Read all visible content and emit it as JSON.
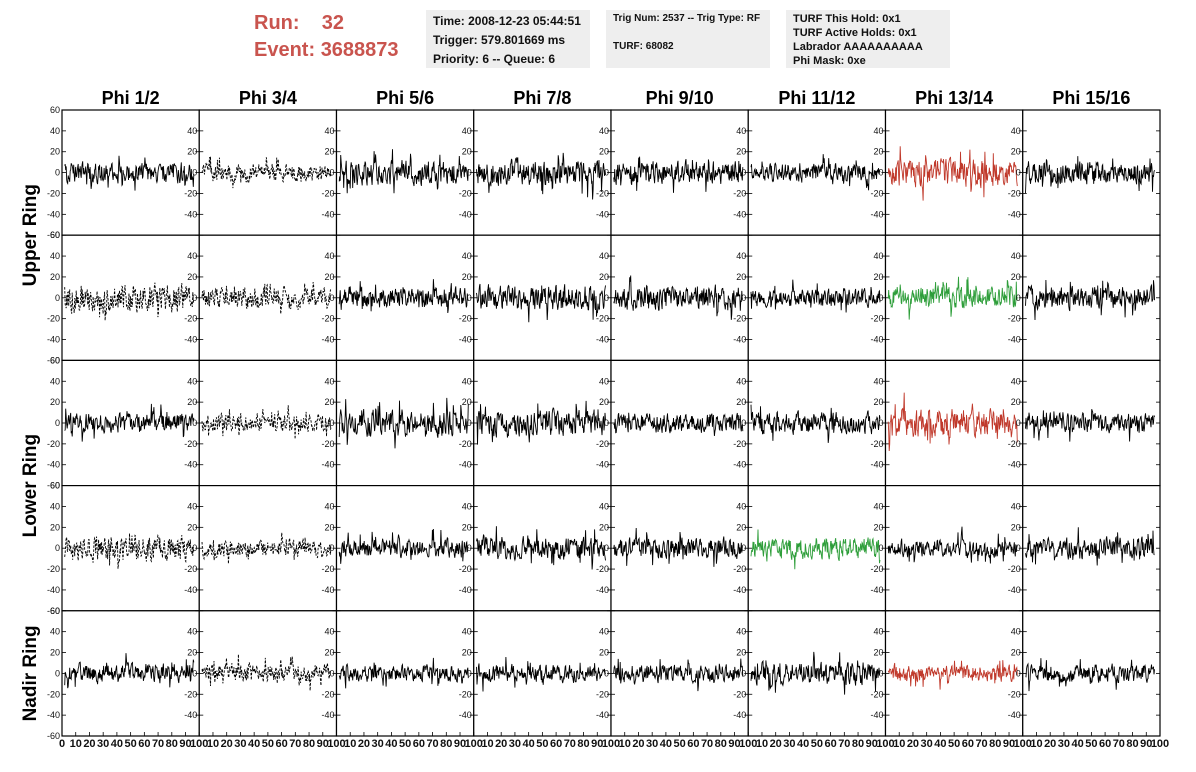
{
  "header": {
    "run_label": "Run:",
    "run_value": "32",
    "event_label": "Event:",
    "event_value": "3688873"
  },
  "info_time": {
    "time": "Time: 2008-12-23 05:44:51",
    "trigger": "Trigger: 579.801669 ms",
    "priority": "Priority: 6 -- Queue: 6"
  },
  "info_trig": {
    "trig": "Trig Num: 2537 -- Trig Type: RF",
    "turf": "TURF: 68082"
  },
  "info_turf": {
    "hold": "TURF This Hold: 0x1",
    "active": "TURF Active Holds: 0x1",
    "labrador": "Labrador AAAAAAAAAA",
    "phimask": "Phi Mask: 0xe"
  },
  "colors": {
    "normal": "#000000",
    "red": "#c0392b",
    "green": "#2e9e3a",
    "header": "#c9544e"
  },
  "chart_data": {
    "type": "line",
    "title": "",
    "xlabel": "",
    "ylabel": "",
    "xlim": [
      0,
      100
    ],
    "ylim": [
      -60,
      60
    ],
    "x_ticks": [
      0,
      10,
      20,
      30,
      40,
      50,
      60,
      70,
      80,
      90,
      100
    ],
    "y_ticks": [
      -60,
      -40,
      -20,
      0,
      20,
      40,
      60
    ],
    "columns": [
      "Phi 1/2",
      "Phi 3/4",
      "Phi 5/6",
      "Phi 7/8",
      "Phi 9/10",
      "Phi 11/12",
      "Phi 13/14",
      "Phi 15/16"
    ],
    "rows": [
      "Upper Ring",
      "",
      "Lower Ring",
      "",
      "Nadir Ring"
    ],
    "row_labels": [
      "Upper Ring",
      "Lower Ring",
      "Nadir Ring"
    ],
    "panels": [
      [
        {
          "style": "solid",
          "color": "normal",
          "amp": 13
        },
        {
          "style": "dashed",
          "color": "normal",
          "amp": 11
        },
        {
          "style": "solid",
          "color": "normal",
          "amp": 15
        },
        {
          "style": "solid",
          "color": "normal",
          "amp": 16
        },
        {
          "style": "solid",
          "color": "normal",
          "amp": 14
        },
        {
          "style": "solid",
          "color": "normal",
          "amp": 12
        },
        {
          "style": "solid",
          "color": "red",
          "amp": 17
        },
        {
          "style": "solid",
          "color": "normal",
          "amp": 14
        }
      ],
      [
        {
          "style": "dashed",
          "color": "normal",
          "amp": 17
        },
        {
          "style": "dashed",
          "color": "normal",
          "amp": 13
        },
        {
          "style": "solid",
          "color": "normal",
          "amp": 13
        },
        {
          "style": "solid",
          "color": "normal",
          "amp": 16
        },
        {
          "style": "solid",
          "color": "normal",
          "amp": 15
        },
        {
          "style": "solid",
          "color": "normal",
          "amp": 11
        },
        {
          "style": "solid",
          "color": "green",
          "amp": 14
        },
        {
          "style": "solid",
          "color": "normal",
          "amp": 14
        }
      ],
      [
        {
          "style": "solid",
          "color": "normal",
          "amp": 12
        },
        {
          "style": "dashed",
          "color": "normal",
          "amp": 11
        },
        {
          "style": "solid",
          "color": "normal",
          "amp": 16
        },
        {
          "style": "solid",
          "color": "normal",
          "amp": 16
        },
        {
          "style": "solid",
          "color": "normal",
          "amp": 12
        },
        {
          "style": "solid",
          "color": "normal",
          "amp": 13
        },
        {
          "style": "solid",
          "color": "red",
          "amp": 18
        },
        {
          "style": "solid",
          "color": "normal",
          "amp": 12
        }
      ],
      [
        {
          "style": "dashed",
          "color": "normal",
          "amp": 16
        },
        {
          "style": "dashed",
          "color": "normal",
          "amp": 11
        },
        {
          "style": "solid",
          "color": "normal",
          "amp": 12
        },
        {
          "style": "solid",
          "color": "normal",
          "amp": 14
        },
        {
          "style": "solid",
          "color": "normal",
          "amp": 13
        },
        {
          "style": "solid",
          "color": "green",
          "amp": 13
        },
        {
          "style": "solid",
          "color": "normal",
          "amp": 11
        },
        {
          "style": "solid",
          "color": "normal",
          "amp": 13
        }
      ],
      [
        {
          "style": "solid",
          "color": "normal",
          "amp": 12
        },
        {
          "style": "dashed",
          "color": "normal",
          "amp": 12
        },
        {
          "style": "solid",
          "color": "normal",
          "amp": 10
        },
        {
          "style": "solid",
          "color": "normal",
          "amp": 11
        },
        {
          "style": "solid",
          "color": "normal",
          "amp": 11
        },
        {
          "style": "solid",
          "color": "normal",
          "amp": 14
        },
        {
          "style": "solid",
          "color": "red",
          "amp": 10
        },
        {
          "style": "solid",
          "color": "normal",
          "amp": 11
        }
      ]
    ]
  }
}
